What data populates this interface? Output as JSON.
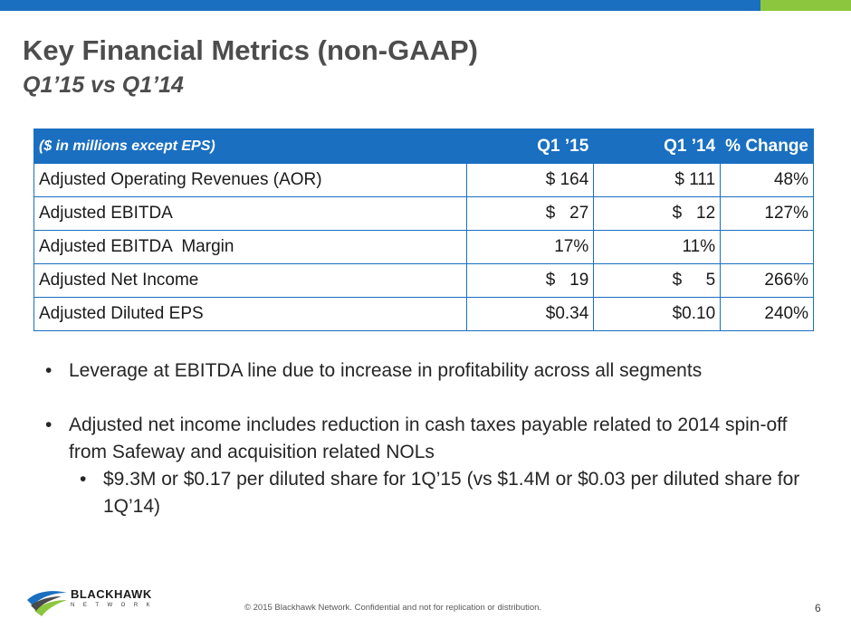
{
  "header": {
    "title": "Key Financial Metrics (non-GAAP)",
    "subtitle": "Q1’15 vs Q1’14"
  },
  "table": {
    "headers": [
      "($ in millions except EPS)",
      "Q1 ’15",
      "Q1 ’14",
      "% Change"
    ],
    "rows": [
      [
        "Adjusted Operating Revenues (AOR)",
        "$ 164",
        "$ 111",
        "48%"
      ],
      [
        "Adjusted EBITDA",
        "$   27",
        "$   12",
        "127%"
      ],
      [
        "Adjusted EBITDA  Margin",
        "17%",
        "11%",
        ""
      ],
      [
        "Adjusted Net Income",
        "$   19",
        "$     5",
        "266%"
      ],
      [
        "Adjusted Diluted EPS",
        "$0.34",
        "$0.10",
        "240%"
      ]
    ]
  },
  "bullets": {
    "marker": "•",
    "b1": "Leverage at EBITDA line due to increase in profitability across all segments",
    "b2": "Adjusted net income includes reduction in cash taxes payable related to 2014 spin-off from Safeway and acquisition related NOLs",
    "b2_sub": "$9.3M or $0.17 per diluted share for 1Q’15 (vs $1.4M or $0.03 per diluted share for 1Q’14)"
  },
  "footer": {
    "copyright": "© 2015 Blackhawk Network. Confidential and not for replication or distribution.",
    "page_number": "6"
  },
  "logo": {
    "name": "BLACKHAWK",
    "tagline": "NETWORK"
  },
  "colors": {
    "brand_blue": "#1a6fc0",
    "brand_green": "#8cc63e"
  }
}
